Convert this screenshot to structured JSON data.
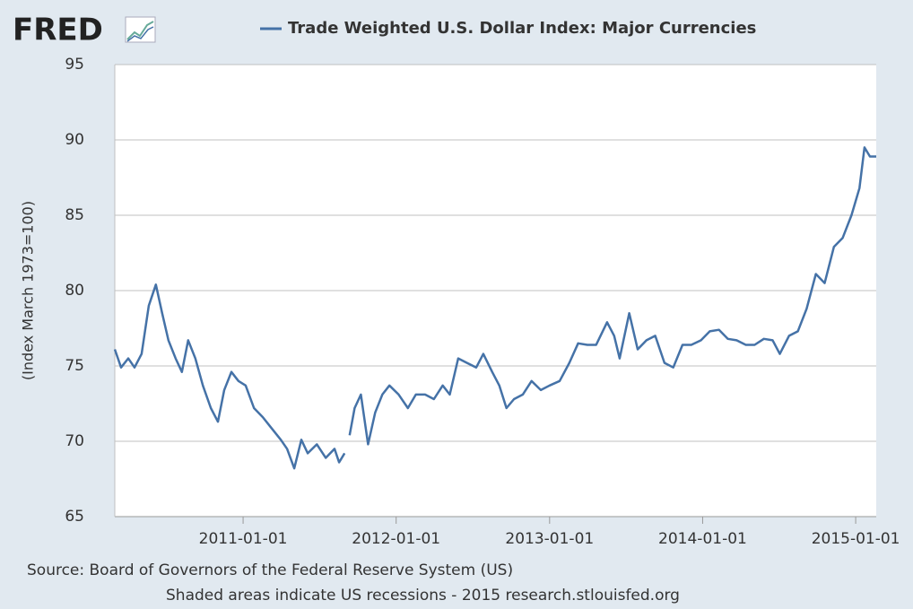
{
  "chart_data": {
    "type": "line",
    "logo": "FRED",
    "y_label": "(Index March 1973=100)",
    "source": "Source: Board of Governors of the Federal Reserve System (US)",
    "note": "Shaded areas indicate US recessions - 2015 research.stlouisfed.org",
    "xlim": [
      "2010-03-01",
      "2015-02-19"
    ],
    "xticks": [
      "2011-01-01",
      "2012-01-01",
      "2013-01-01",
      "2014-01-01",
      "2015-01-01"
    ],
    "ylim": [
      65,
      95
    ],
    "yticks": [
      65,
      70,
      75,
      80,
      85,
      90,
      95
    ],
    "grid": true,
    "legend": "top",
    "x": [
      "2010-03-01",
      "2010-03-16",
      "2010-04-02",
      "2010-04-17",
      "2010-05-04",
      "2010-05-21",
      "2010-06-07",
      "2010-06-22",
      "2010-07-07",
      "2010-07-24",
      "2010-08-08",
      "2010-08-23",
      "2010-09-09",
      "2010-09-27",
      "2010-10-16",
      "2010-11-02",
      "2010-11-17",
      "2010-12-04",
      "2010-12-21",
      "2011-01-07",
      "2011-01-27",
      "2011-02-17",
      "2011-03-06",
      "2011-04-01",
      "2011-04-16",
      "2011-05-03",
      "2011-05-20",
      "2011-06-04",
      "2011-06-26",
      "2011-07-17",
      "2011-08-07",
      "2011-08-18",
      "2011-08-31",
      "2011-09-05",
      "2011-09-12",
      "2011-09-24",
      "2011-10-09",
      "2011-10-26",
      "2011-11-12",
      "2011-11-29",
      "2011-12-16",
      "2012-01-07",
      "2012-01-29",
      "2012-02-17",
      "2012-03-10",
      "2012-03-31",
      "2012-04-21",
      "2012-05-08",
      "2012-05-28",
      "2012-06-18",
      "2012-07-10",
      "2012-07-27",
      "2012-08-17",
      "2012-09-03",
      "2012-09-20",
      "2012-10-08",
      "2012-10-29",
      "2012-11-19",
      "2012-12-11",
      "2013-01-01",
      "2013-01-25",
      "2013-02-17",
      "2013-03-10",
      "2013-04-01",
      "2013-04-22",
      "2013-05-18",
      "2013-06-04",
      "2013-06-17",
      "2013-07-10",
      "2013-07-30",
      "2013-08-20",
      "2013-09-10",
      "2013-10-02",
      "2013-10-23",
      "2013-11-14",
      "2013-12-05",
      "2013-12-28",
      "2014-01-18",
      "2014-02-09",
      "2014-03-02",
      "2014-03-23",
      "2014-04-14",
      "2014-05-05",
      "2014-05-27",
      "2014-06-17",
      "2014-07-04",
      "2014-07-26",
      "2014-08-16",
      "2014-09-06",
      "2014-09-28",
      "2014-10-19",
      "2014-11-10",
      "2014-12-01",
      "2014-12-22",
      "2015-01-10",
      "2015-01-22",
      "2015-02-04",
      "2015-02-19"
    ],
    "series": [
      {
        "name": "Trade Weighted U.S. Dollar Index: Major Currencies",
        "color": "#4572a7",
        "values": [
          76.1,
          74.9,
          75.5,
          74.9,
          75.8,
          79.0,
          80.4,
          78.5,
          76.7,
          75.5,
          74.6,
          76.7,
          75.5,
          73.7,
          72.2,
          71.3,
          73.4,
          74.6,
          74.0,
          73.7,
          72.2,
          71.6,
          71.0,
          70.1,
          69.5,
          68.2,
          70.1,
          69.2,
          69.8,
          68.9,
          69.5,
          68.6,
          69.2,
          null,
          70.4,
          72.2,
          73.1,
          69.8,
          71.9,
          73.1,
          73.7,
          73.1,
          72.2,
          73.1,
          73.1,
          72.8,
          73.7,
          73.1,
          75.5,
          75.2,
          74.9,
          75.8,
          74.6,
          73.7,
          72.2,
          72.8,
          73.1,
          74.0,
          73.4,
          73.7,
          74.0,
          75.2,
          76.5,
          76.4,
          76.4,
          77.9,
          77.0,
          75.5,
          78.5,
          76.1,
          76.7,
          77.0,
          75.2,
          74.9,
          76.4,
          76.4,
          76.7,
          77.3,
          77.4,
          76.8,
          76.7,
          76.4,
          76.4,
          76.8,
          76.7,
          75.8,
          77.0,
          77.3,
          78.8,
          81.1,
          80.5,
          82.9,
          83.5,
          85.0,
          86.8,
          89.5,
          88.9,
          88.9
        ]
      }
    ]
  }
}
